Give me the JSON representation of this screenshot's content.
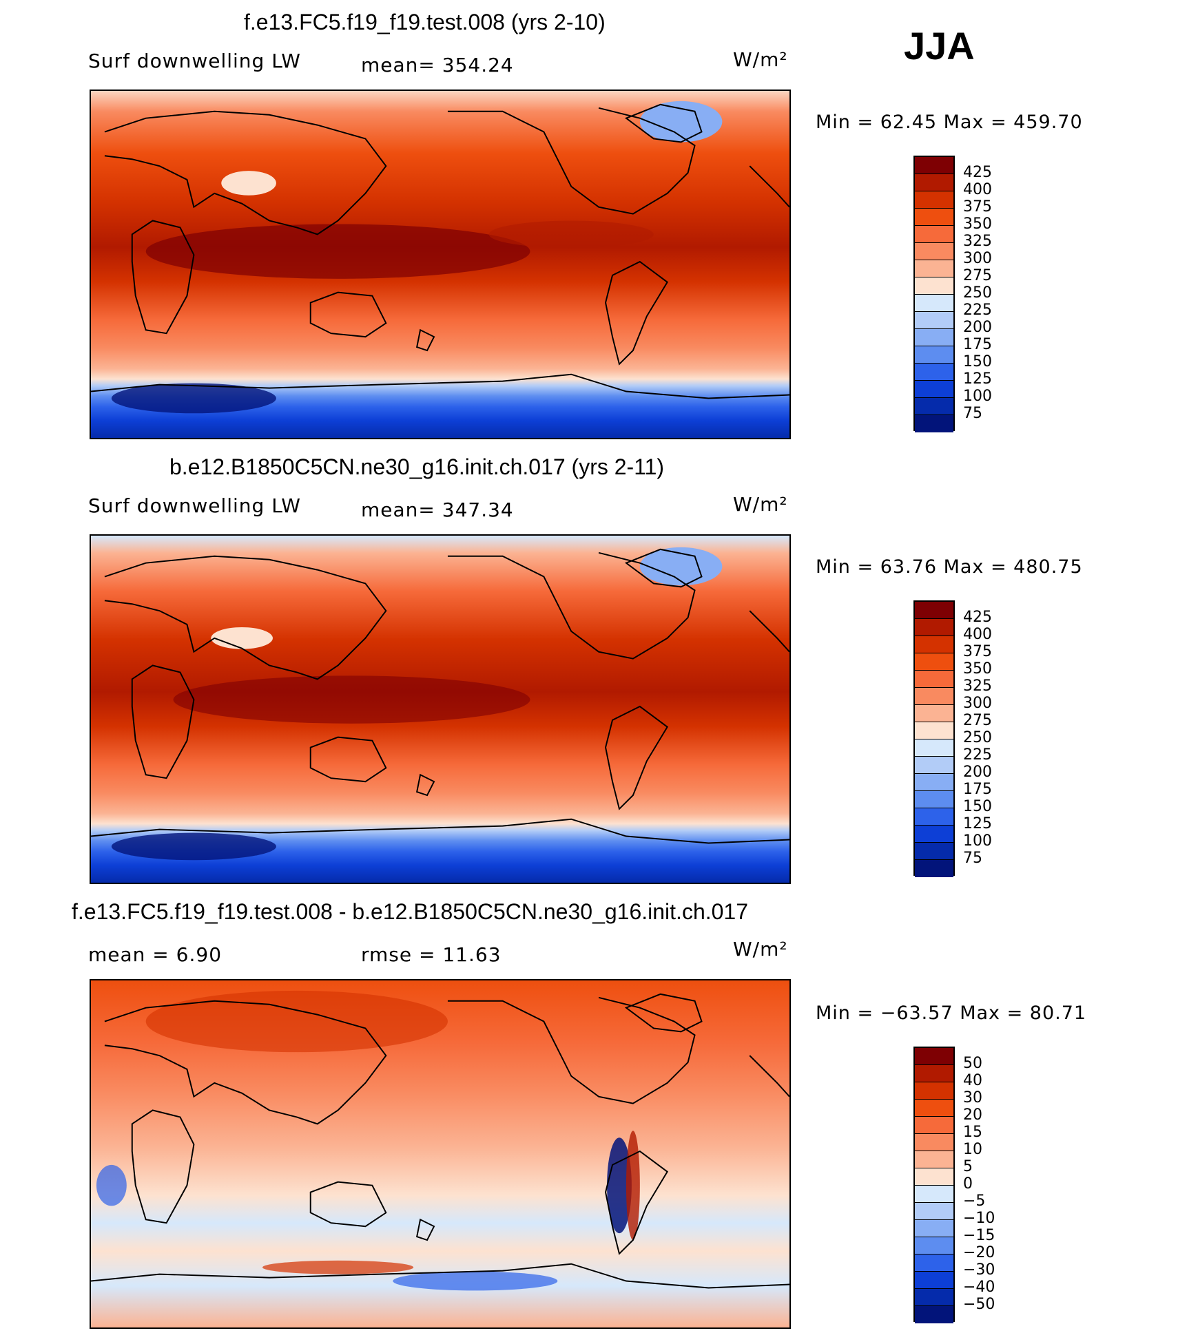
{
  "season": "JJA",
  "panels": [
    {
      "title": "f.e13.FC5.f19_f19.test.008 (yrs 2-10)",
      "left_label": "Surf downwelling LW",
      "mid_label": "mean= 354.24",
      "units": "W/m²",
      "minmax": "Min =   62.45 Max = 459.70",
      "colorbar_ticks": [
        "425",
        "400",
        "375",
        "350",
        "325",
        "300",
        "275",
        "250",
        "225",
        "200",
        "175",
        "150",
        "125",
        "100",
        "75"
      ],
      "colorbar_colors": [
        "#7e0003",
        "#b11a00",
        "#d43200",
        "#ee4f0f",
        "#f66a3a",
        "#f98a60",
        "#fbb393",
        "#fde2d0",
        "#d6e8fb",
        "#b2ccf7",
        "#88aef4",
        "#5d8df0",
        "#2d62ea",
        "#0d3fd6",
        "#052bab",
        "#02147a"
      ]
    },
    {
      "title": "b.e12.B1850C5CN.ne30_g16.init.ch.017 (yrs 2-11)",
      "left_label": "Surf downwelling LW",
      "mid_label": "mean= 347.34",
      "units": "W/m²",
      "minmax": "Min =   63.76 Max = 480.75",
      "colorbar_ticks": [
        "425",
        "400",
        "375",
        "350",
        "325",
        "300",
        "275",
        "250",
        "225",
        "200",
        "175",
        "150",
        "125",
        "100",
        "75"
      ],
      "colorbar_colors": [
        "#7e0003",
        "#b11a00",
        "#d43200",
        "#ee4f0f",
        "#f66a3a",
        "#f98a60",
        "#fbb393",
        "#fde2d0",
        "#d6e8fb",
        "#b2ccf7",
        "#88aef4",
        "#5d8df0",
        "#2d62ea",
        "#0d3fd6",
        "#052bab",
        "#02147a"
      ]
    },
    {
      "title": "f.e13.FC5.f19_f19.test.008 - b.e12.B1850C5CN.ne30_g16.init.ch.017",
      "left_label": "mean =    6.90",
      "mid_label": "rmse =   11.63",
      "units": "W/m²",
      "minmax": "Min = −63.57 Max =  80.71",
      "colorbar_ticks": [
        "50",
        "40",
        "30",
        "20",
        "15",
        "10",
        "5",
        "0",
        "−5",
        "−10",
        "−15",
        "−20",
        "−30",
        "−40",
        "−50"
      ],
      "colorbar_colors": [
        "#7e0003",
        "#b11a00",
        "#d43200",
        "#ee4f0f",
        "#f66a3a",
        "#f98a60",
        "#fbb393",
        "#fde2d0",
        "#d6e8fb",
        "#b2ccf7",
        "#88aef4",
        "#5d8df0",
        "#2d62ea",
        "#0d3fd6",
        "#052bab",
        "#02147a"
      ]
    }
  ]
}
